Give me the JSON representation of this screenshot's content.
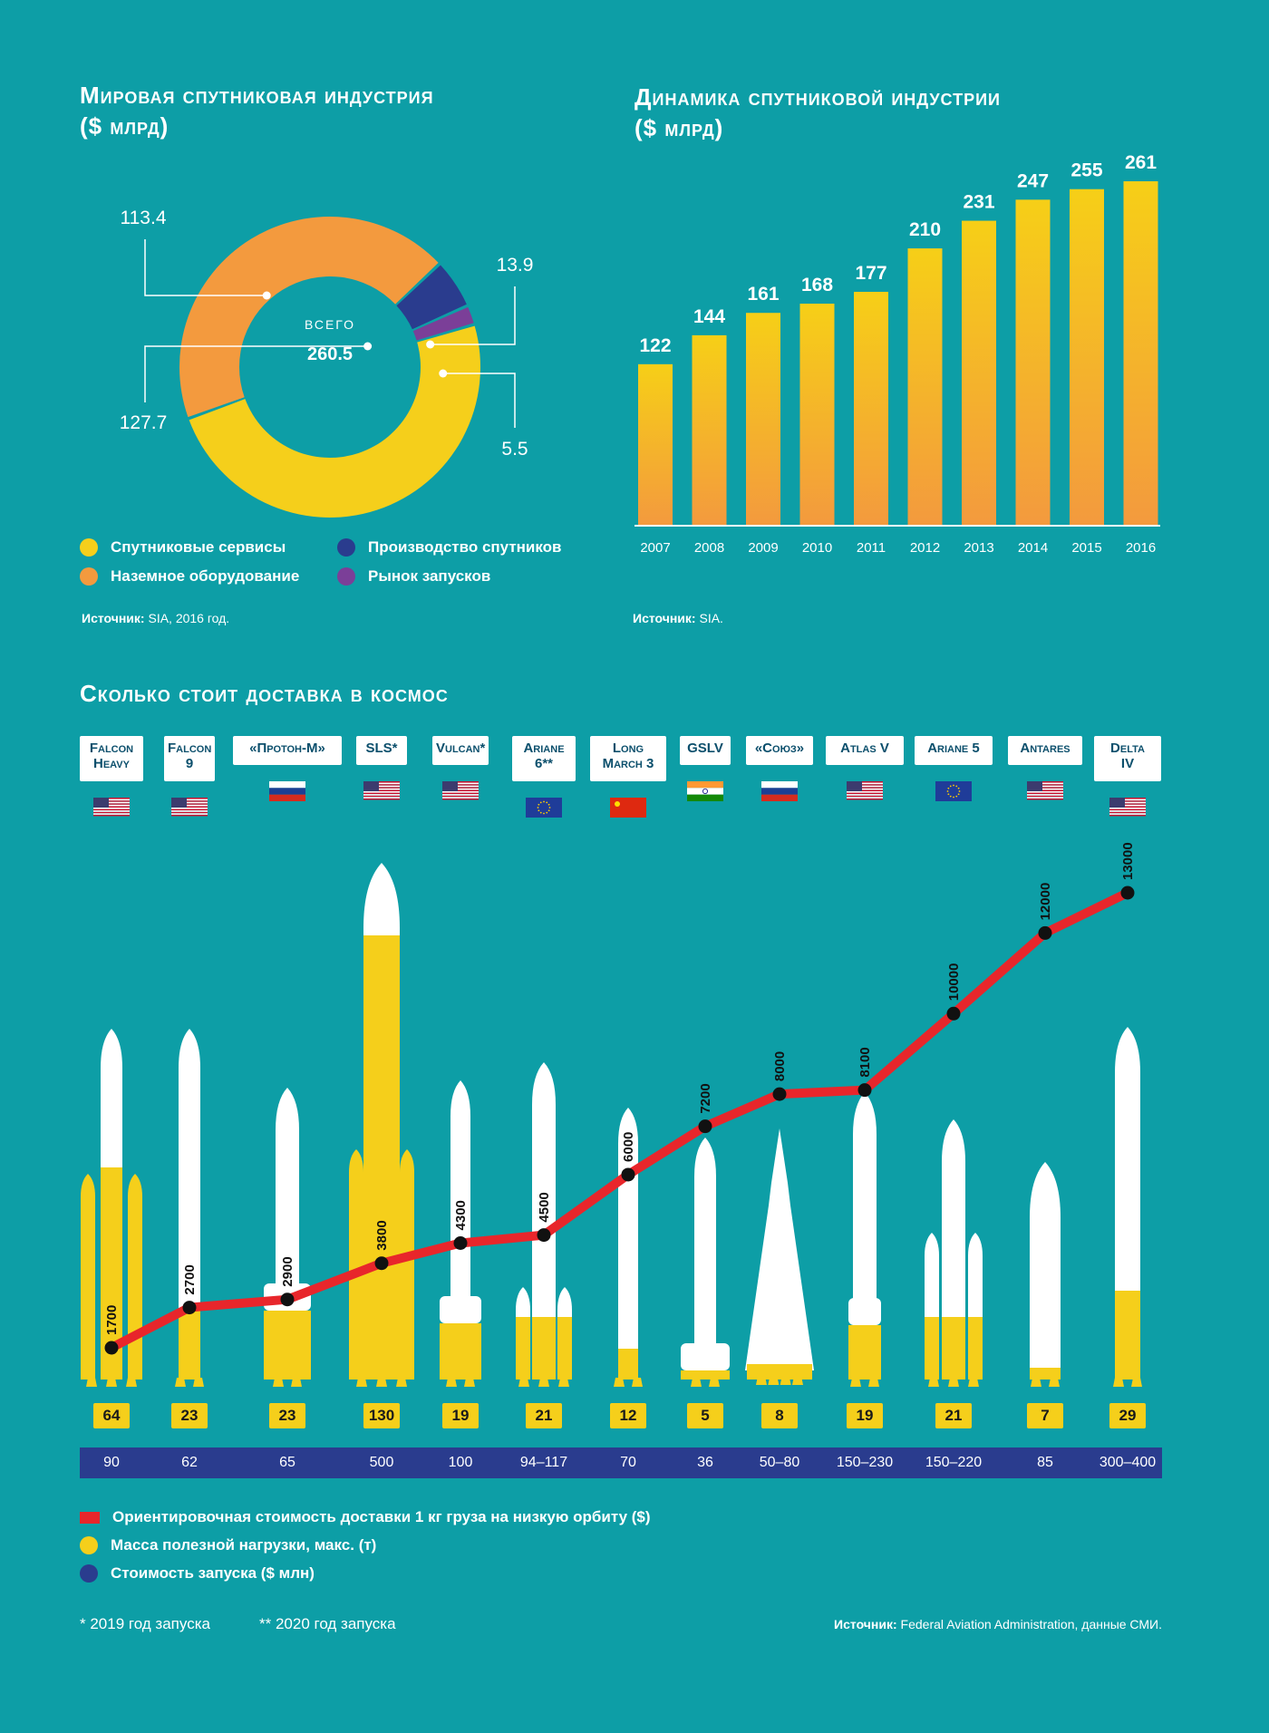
{
  "donut": {
    "title": "Мировая спутниковая индустрия\n($ млрд)",
    "center_label": "ВСЕГО",
    "center_value": "260.5",
    "segments": [
      {
        "name": "Спутниковые сервисы",
        "value": 127.7,
        "label": "127.7",
        "color": "#f5cf1b"
      },
      {
        "name": "Наземное оборудование",
        "value": 113.4,
        "label": "113.4",
        "color": "#f39a3e"
      },
      {
        "name": "Производство спутников",
        "value": 13.9,
        "label": "13.9",
        "color": "#2a3c8e"
      },
      {
        "name": "Рынок запусков",
        "value": 5.5,
        "label": "5.5",
        "color": "#7b3f98"
      }
    ],
    "source_bold": "Источник:",
    "source_text": " SIA, 2016 год."
  },
  "bars": {
    "title": "Динамика спутниковой индустрии\n($ млрд)",
    "source_bold": "Источник:",
    "source_text": " SIA."
  },
  "chart_data": [
    {
      "type": "pie",
      "title": "Мировая спутниковая индустрия ($ млрд)",
      "categories": [
        "Спутниковые сервисы",
        "Наземное оборудование",
        "Производство спутников",
        "Рынок запусков"
      ],
      "values": [
        127.7,
        113.4,
        13.9,
        5.5
      ],
      "total": 260.5
    },
    {
      "type": "bar",
      "title": "Динамика спутниковой индустрии ($ млрд)",
      "categories": [
        "2007",
        "2008",
        "2009",
        "2010",
        "2011",
        "2012",
        "2013",
        "2014",
        "2015",
        "2016"
      ],
      "values": [
        122,
        144,
        161,
        168,
        177,
        210,
        231,
        247,
        255,
        261
      ],
      "ylim": [
        0,
        261
      ]
    },
    {
      "type": "line",
      "title": "Сколько стоит доставка в космос",
      "categories": [
        "Falcon Heavy",
        "Falcon 9",
        "«Протон-М»",
        "SLS*",
        "Vulcan*",
        "Ariane 6**",
        "Long March 3",
        "GSLV",
        "«Союз»",
        "Atlas V",
        "Ariane 5",
        "Antares",
        "Delta IV"
      ],
      "series": [
        {
          "name": "Ориентировочная стоимость доставки 1 кг груза на низкую орбиту ($)",
          "values": [
            1700,
            2700,
            2900,
            3800,
            4300,
            4500,
            6000,
            7200,
            8000,
            8100,
            10000,
            12000,
            13000
          ]
        },
        {
          "name": "Масса полезной нагрузки, макс. (т)",
          "values": [
            64,
            23,
            23,
            130,
            19,
            21,
            12,
            5,
            8,
            19,
            21,
            7,
            29
          ]
        },
        {
          "name": "Стоимость запуска ($ млн)",
          "values": [
            "90",
            "62",
            "65",
            "500",
            "100",
            "94–117",
            "70",
            "36",
            "50–80",
            "150–230",
            "150–220",
            "85",
            "300–400"
          ]
        }
      ],
      "ylim": [
        0,
        13000
      ]
    }
  ],
  "cost": {
    "title": "Сколько стоит доставка в космос",
    "rockets": [
      {
        "label": "Falcon\nHeavy",
        "flag": "usa",
        "cost": "1700",
        "payload": "64",
        "price": "90"
      },
      {
        "label": "Falcon\n9",
        "flag": "usa",
        "cost": "2700",
        "payload": "23",
        "price": "62"
      },
      {
        "label": "«Протон-М»",
        "flag": "russia",
        "cost": "2900",
        "payload": "23",
        "price": "65"
      },
      {
        "label": "SLS*",
        "flag": "usa",
        "cost": "3800",
        "payload": "130",
        "price": "500"
      },
      {
        "label": "Vulcan*",
        "flag": "usa",
        "cost": "4300",
        "payload": "19",
        "price": "100"
      },
      {
        "label": "Ariane\n6**",
        "flag": "eu",
        "cost": "4500",
        "payload": "21",
        "price": "94–117"
      },
      {
        "label": "Long\nMarch 3",
        "flag": "china",
        "cost": "6000",
        "payload": "12",
        "price": "70"
      },
      {
        "label": "GSLV",
        "flag": "india",
        "cost": "7200",
        "payload": "5",
        "price": "36"
      },
      {
        "label": "«Союз»",
        "flag": "russia",
        "cost": "8000",
        "payload": "8",
        "price": "50–80"
      },
      {
        "label": "Atlas V",
        "flag": "usa",
        "cost": "8100",
        "payload": "19",
        "price": "150–230"
      },
      {
        "label": "Ariane 5",
        "flag": "eu",
        "cost": "10000",
        "payload": "21",
        "price": "150–220"
      },
      {
        "label": "Antares",
        "flag": "usa",
        "cost": "12000",
        "payload": "7",
        "price": "85"
      },
      {
        "label": "Delta\nIV",
        "flag": "usa",
        "cost": "13000",
        "payload": "29",
        "price": "300–400"
      }
    ],
    "legend": [
      {
        "label": "Ориентировочная стоимость доставки 1 кг груза на низкую орбиту ($)",
        "color": "#e8262b"
      },
      {
        "label": "Масса полезной нагрузки, макс. (т)",
        "color": "#f5cf1b"
      },
      {
        "label": "Стоимость запуска ($ млн)",
        "color": "#2a3c8e"
      }
    ],
    "footnote1": "* 2019 год запуска",
    "footnote2": "** 2020 год запуска",
    "source_bold": "Источник:",
    "source_text": " Federal Aviation Administration, данные СМИ."
  }
}
